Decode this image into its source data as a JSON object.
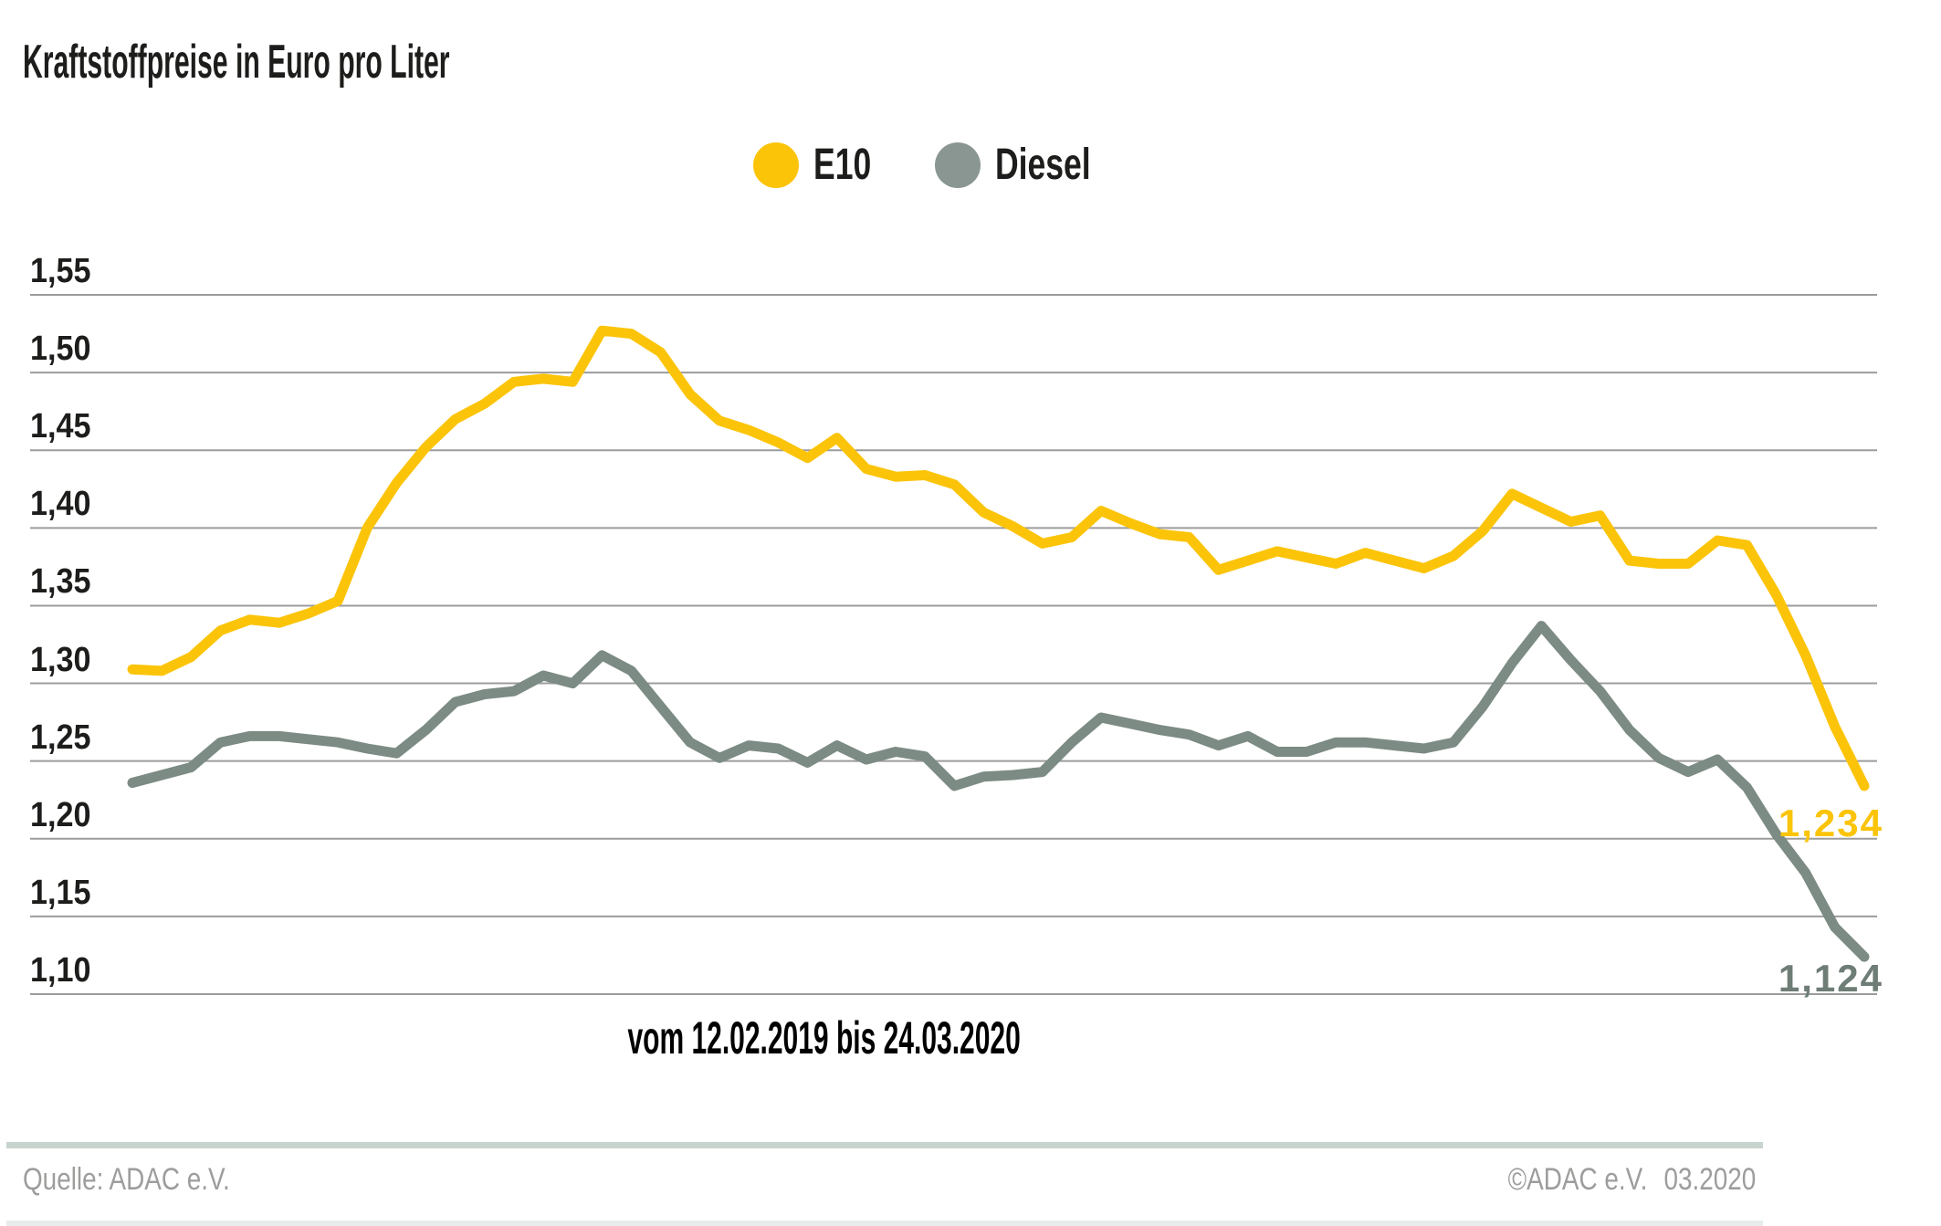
{
  "title": "Kraftstoffpreise in Euro pro Liter",
  "legend": [
    {
      "label": "E10",
      "color": "#fbc409"
    },
    {
      "label": "Diesel",
      "color": "#8a9691"
    }
  ],
  "footer": {
    "source": "Quelle: ADAC e.V.",
    "copyright": "©ADAC e.V.",
    "issue": "03.2020"
  },
  "chart_data": {
    "type": "line",
    "title": "Kraftstoffpreise in Euro pro Liter",
    "xlabel": "vom 12.02.2019 bis 24.03.2020",
    "ylabel": "Euro pro Liter",
    "ylim": [
      1.1,
      1.55
    ],
    "grid": true,
    "gridline_color": "#9c9c9c",
    "legend_position": "top-center",
    "x_period": {
      "start": "12.02.2019",
      "end": "24.03.2020"
    },
    "yticks": [
      {
        "value": 1.55,
        "label": "1,55"
      },
      {
        "value": 1.5,
        "label": "1,50"
      },
      {
        "value": 1.45,
        "label": "1,45"
      },
      {
        "value": 1.4,
        "label": "1,40"
      },
      {
        "value": 1.35,
        "label": "1,35"
      },
      {
        "value": 1.3,
        "label": "1,30"
      },
      {
        "value": 1.25,
        "label": "1,25"
      },
      {
        "value": 1.2,
        "label": "1,20"
      },
      {
        "value": 1.15,
        "label": "1,15"
      },
      {
        "value": 1.1,
        "label": "1,10"
      }
    ],
    "series": [
      {
        "name": "E10",
        "color": "#fbc409",
        "label_color": "#fbc409",
        "end_label": "1,234",
        "values": [
          1.309,
          1.308,
          1.317,
          1.334,
          1.341,
          1.339,
          1.345,
          1.353,
          1.4,
          1.429,
          1.452,
          1.47,
          1.48,
          1.494,
          1.496,
          1.494,
          1.527,
          1.525,
          1.513,
          1.486,
          1.469,
          1.463,
          1.455,
          1.445,
          1.458,
          1.438,
          1.433,
          1.434,
          1.428,
          1.41,
          1.401,
          1.39,
          1.394,
          1.411,
          1.403,
          1.396,
          1.394,
          1.373,
          1.379,
          1.385,
          1.381,
          1.377,
          1.384,
          1.379,
          1.374,
          1.382,
          1.398,
          1.422,
          1.413,
          1.404,
          1.408,
          1.379,
          1.377,
          1.377,
          1.392,
          1.389,
          1.357,
          1.318,
          1.272,
          1.234
        ]
      },
      {
        "name": "Diesel",
        "color": "#7c8b84",
        "label_color": "#6e7d76",
        "end_label": "1,124",
        "values": [
          1.236,
          1.241,
          1.246,
          1.262,
          1.266,
          1.266,
          1.264,
          1.262,
          1.258,
          1.255,
          1.27,
          1.288,
          1.293,
          1.295,
          1.305,
          1.3,
          1.318,
          1.308,
          1.285,
          1.262,
          1.252,
          1.26,
          1.258,
          1.249,
          1.26,
          1.251,
          1.256,
          1.253,
          1.234,
          1.24,
          1.241,
          1.243,
          1.262,
          1.278,
          1.274,
          1.27,
          1.267,
          1.26,
          1.266,
          1.256,
          1.256,
          1.262,
          1.262,
          1.26,
          1.258,
          1.262,
          1.285,
          1.313,
          1.337,
          1.315,
          1.295,
          1.27,
          1.252,
          1.243,
          1.251,
          1.233,
          1.203,
          1.178,
          1.143,
          1.124
        ]
      }
    ]
  }
}
